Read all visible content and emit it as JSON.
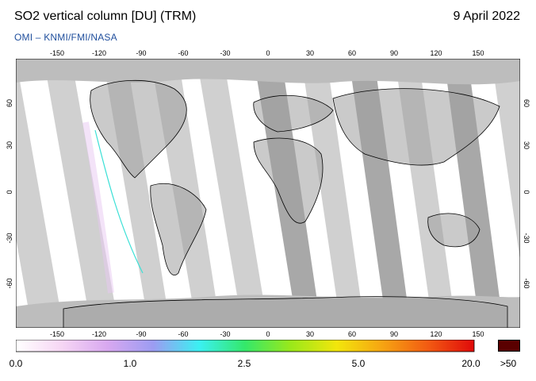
{
  "header": {
    "title": "SO2 vertical column [DU] (TRM)",
    "date": "9 April 2022",
    "credit": "OMI  –  KNMI/FMI/NASA"
  },
  "map": {
    "lon_ticks": [
      "-150",
      "-120",
      "-90",
      "-60",
      "-30",
      "0",
      "30",
      "60",
      "90",
      "120",
      "150"
    ],
    "lat_ticks": [
      "60",
      "30",
      "0",
      "-30",
      "-60"
    ],
    "colors": {
      "ocean_gap": "#ffffff",
      "swath_light": "#d0d0d0",
      "swath_dark": "#a8a8a8",
      "polar": "#bdbdbd",
      "coast": "#000000"
    }
  },
  "colorbar": {
    "labels": [
      "0.0",
      "1.0",
      "2.5",
      "5.0",
      "20.0",
      ">50"
    ],
    "gradient": [
      "#ffffff",
      "#f6d6f4",
      "#d8a8f0",
      "#9c9cf2",
      "#3bf0f2",
      "#34e86a",
      "#9ae81a",
      "#f2e60c",
      "#f6a412",
      "#f25a12",
      "#e00a0a"
    ],
    "overflow_color": "#5a0000"
  }
}
